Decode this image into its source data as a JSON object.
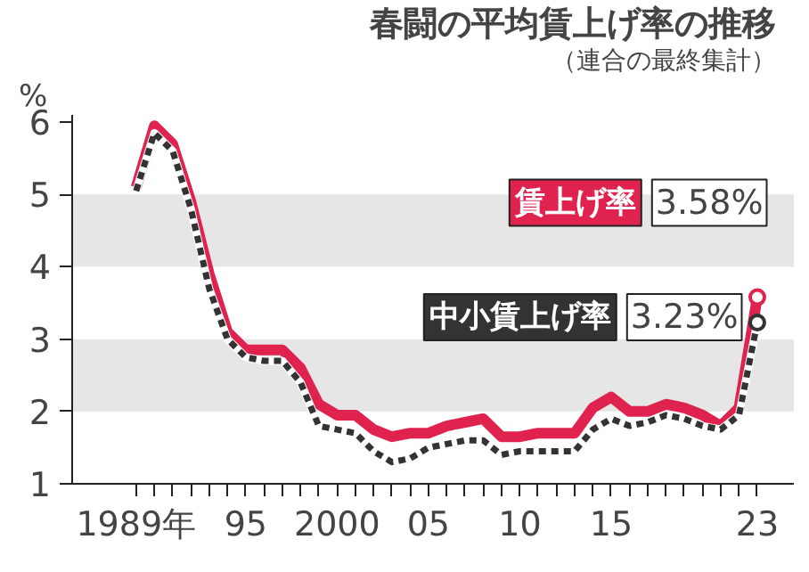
{
  "chart_data": {
    "type": "line",
    "title": "春闘の平均賃上げ率の推移",
    "subtitle": "（連合の最終集計）",
    "ylabel": "%",
    "x": [
      1989,
      1990,
      1991,
      1992,
      1993,
      1994,
      1995,
      1996,
      1997,
      1998,
      1999,
      2000,
      2001,
      2002,
      2003,
      2004,
      2005,
      2006,
      2007,
      2008,
      2009,
      2010,
      2011,
      2012,
      2013,
      2014,
      2015,
      2016,
      2017,
      2018,
      2019,
      2020,
      2021,
      2022,
      2023
    ],
    "series": [
      {
        "name": "賃上げ率",
        "color": "#e0224e",
        "line_style": "solid",
        "values": [
          5.1,
          5.95,
          5.7,
          4.9,
          3.9,
          3.1,
          2.85,
          2.85,
          2.85,
          2.6,
          2.1,
          1.95,
          1.95,
          1.75,
          1.65,
          1.7,
          1.7,
          1.8,
          1.85,
          1.9,
          1.65,
          1.65,
          1.7,
          1.7,
          1.7,
          2.05,
          2.2,
          2.0,
          2.0,
          2.1,
          2.05,
          1.95,
          1.8,
          2.05,
          3.58
        ],
        "value_labels": [
          null,
          null,
          null,
          null,
          null,
          null,
          null,
          null,
          null,
          null,
          null,
          null,
          null,
          null,
          null,
          null,
          null,
          null,
          null,
          null,
          null,
          null,
          null,
          null,
          null,
          null,
          null,
          null,
          null,
          null,
          null,
          null,
          null,
          null,
          "3.58%"
        ]
      },
      {
        "name": "中小賃上げ率",
        "color": "#333333",
        "line_style": "dashed",
        "values": [
          5.05,
          5.85,
          5.6,
          4.8,
          3.7,
          3.0,
          2.75,
          2.7,
          2.7,
          2.4,
          1.8,
          1.75,
          1.7,
          1.45,
          1.3,
          1.35,
          1.5,
          1.55,
          1.6,
          1.6,
          1.4,
          1.45,
          1.45,
          1.45,
          1.45,
          1.75,
          1.9,
          1.8,
          1.85,
          1.95,
          1.9,
          1.8,
          1.75,
          1.95,
          3.23
        ],
        "value_labels": [
          null,
          null,
          null,
          null,
          null,
          null,
          null,
          null,
          null,
          null,
          null,
          null,
          null,
          null,
          null,
          null,
          null,
          null,
          null,
          null,
          null,
          null,
          null,
          null,
          null,
          null,
          null,
          null,
          null,
          null,
          null,
          null,
          null,
          null,
          "3.23%"
        ]
      }
    ],
    "xlim": [
      1985.5,
      2025
    ],
    "ylim": [
      1,
      6.1
    ],
    "xticks": [
      {
        "value": 1989,
        "label": "1989年"
      },
      {
        "value": 1990,
        "label": null
      },
      {
        "value": 1991,
        "label": null
      },
      {
        "value": 1992,
        "label": null
      },
      {
        "value": 1993,
        "label": null
      },
      {
        "value": 1994,
        "label": null
      },
      {
        "value": 1995,
        "label": "95"
      },
      {
        "value": 1996,
        "label": null
      },
      {
        "value": 1997,
        "label": null
      },
      {
        "value": 1998,
        "label": null
      },
      {
        "value": 1999,
        "label": null
      },
      {
        "value": 2000,
        "label": "2000"
      },
      {
        "value": 2001,
        "label": null
      },
      {
        "value": 2002,
        "label": null
      },
      {
        "value": 2003,
        "label": null
      },
      {
        "value": 2004,
        "label": null
      },
      {
        "value": 2005,
        "label": "05"
      },
      {
        "value": 2006,
        "label": null
      },
      {
        "value": 2007,
        "label": null
      },
      {
        "value": 2008,
        "label": null
      },
      {
        "value": 2009,
        "label": null
      },
      {
        "value": 2010,
        "label": "10"
      },
      {
        "value": 2011,
        "label": null
      },
      {
        "value": 2012,
        "label": null
      },
      {
        "value": 2013,
        "label": null
      },
      {
        "value": 2014,
        "label": null
      },
      {
        "value": 2015,
        "label": "15"
      },
      {
        "value": 2016,
        "label": null
      },
      {
        "value": 2017,
        "label": null
      },
      {
        "value": 2018,
        "label": null
      },
      {
        "value": 2019,
        "label": null
      },
      {
        "value": 2020,
        "label": null
      },
      {
        "value": 2021,
        "label": null
      },
      {
        "value": 2022,
        "label": null
      },
      {
        "value": 2023,
        "label": "23"
      }
    ],
    "yticks": [
      1,
      2,
      3,
      4,
      5,
      6
    ],
    "bands": [
      {
        "axis": "y",
        "from": 2,
        "to": 3,
        "color": "#e6e6e6"
      },
      {
        "axis": "y",
        "from": 4,
        "to": 5,
        "color": "#e6e6e6"
      }
    ],
    "grid": false,
    "marker": "none"
  }
}
